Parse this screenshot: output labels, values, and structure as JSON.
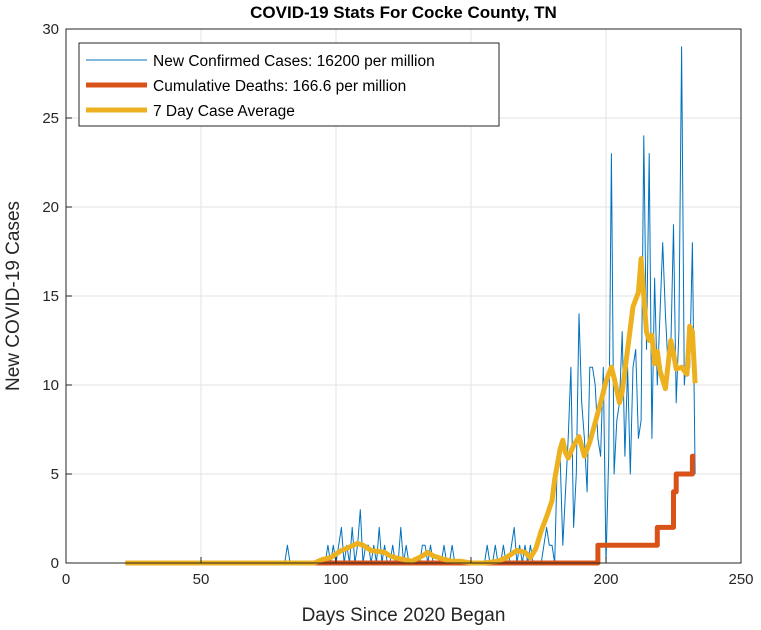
{
  "chart_data": {
    "type": "line",
    "title": "COVID-19 Stats For Cocke County, TN",
    "xlabel": "Days Since 2020 Began",
    "ylabel": "New COVID-19 Cases",
    "xlim": [
      0,
      250
    ],
    "ylim": [
      0,
      30
    ],
    "xticks": [
      0,
      50,
      100,
      150,
      200,
      250
    ],
    "yticks": [
      0,
      5,
      10,
      15,
      20,
      25,
      30
    ],
    "xtick_labels": [
      "0",
      "50",
      "100",
      "150",
      "200",
      "250"
    ],
    "ytick_labels": [
      "0",
      "5",
      "10",
      "15",
      "20",
      "25",
      "30"
    ],
    "grid": true,
    "legend_placement": "top-left",
    "series": [
      {
        "name": "New Confirmed Cases: 16200 per million",
        "color": "#0072BD",
        "x": [
          22,
          30,
          40,
          50,
          60,
          70,
          79,
          80,
          81,
          82,
          83,
          84,
          85,
          90,
          95,
          96,
          97,
          98,
          99,
          100,
          101,
          102,
          103,
          104,
          105,
          106,
          107,
          108,
          109,
          110,
          111,
          112,
          113,
          114,
          115,
          116,
          117,
          118,
          119,
          120,
          121,
          122,
          123,
          124,
          125,
          126,
          127,
          128,
          129,
          130,
          131,
          132,
          133,
          134,
          135,
          136,
          137,
          138,
          139,
          140,
          141,
          142,
          143,
          144,
          145,
          150,
          155,
          156,
          157,
          158,
          159,
          160,
          161,
          162,
          163,
          164,
          165,
          166,
          167,
          168,
          169,
          170,
          171,
          172,
          173,
          174,
          175,
          176,
          177,
          178,
          179,
          180,
          181,
          182,
          183,
          184,
          185,
          186,
          187,
          188,
          189,
          190,
          191,
          192,
          193,
          194,
          195,
          196,
          197,
          198,
          199,
          200,
          201,
          202,
          203,
          204,
          205,
          206,
          207,
          208,
          209,
          210,
          211,
          212,
          213,
          214,
          215,
          216,
          217,
          218,
          219,
          220,
          221,
          222,
          223,
          224,
          225,
          226,
          227,
          228,
          229,
          230,
          231,
          232,
          233
        ],
        "y": [
          0,
          0,
          0,
          0,
          0,
          0,
          0,
          0,
          0,
          1,
          0,
          0,
          0,
          0,
          0,
          0,
          1,
          0,
          1,
          0,
          1,
          2,
          0,
          1,
          0,
          2,
          0,
          1,
          3,
          0,
          1,
          1,
          0,
          1,
          0,
          2,
          0,
          1,
          0,
          0,
          1,
          0,
          0,
          2,
          0,
          1,
          0,
          0,
          0,
          0,
          0,
          1,
          1,
          0,
          1,
          0,
          0,
          0,
          0,
          1,
          0,
          0,
          1,
          0,
          0,
          0,
          0,
          1,
          0,
          0,
          1,
          0,
          0,
          1,
          0,
          0,
          1,
          2,
          0,
          1,
          0,
          1,
          0,
          1,
          0,
          0,
          0,
          0,
          1,
          2,
          1,
          1,
          0,
          6,
          6,
          1,
          4,
          7,
          11,
          2,
          5,
          14,
          9,
          7,
          4,
          11,
          11,
          10,
          7,
          6,
          11,
          0,
          6,
          23,
          5,
          8,
          9,
          13,
          6,
          11,
          5,
          11,
          12,
          7,
          8,
          24,
          12,
          23,
          7,
          16,
          10,
          14,
          18,
          14,
          11,
          12,
          19,
          9,
          13,
          29,
          10,
          12,
          11,
          18,
          5
        ]
      },
      {
        "name": "Cumulative Deaths: 166.6 per million",
        "color": "#D95319",
        "x": [
          22,
          100,
          196,
          197,
          218,
          219,
          223,
          224,
          225,
          226,
          227,
          228,
          229,
          230,
          231,
          232,
          233
        ],
        "y": [
          0,
          0,
          0,
          1,
          1,
          2,
          2,
          2,
          4,
          5,
          5,
          5,
          5,
          5,
          5,
          6,
          6
        ]
      },
      {
        "name": "7 Day Case Average",
        "color": "#EDB120",
        "x": [
          22,
          60,
          88,
          92,
          95,
          98,
          100,
          102,
          105,
          108,
          110,
          113,
          118,
          120,
          122,
          125,
          128,
          132,
          134,
          136,
          140,
          143,
          146,
          150,
          155,
          160,
          163,
          165,
          167,
          170,
          172,
          174,
          176,
          178,
          180,
          181,
          183,
          184,
          185,
          186,
          188,
          190,
          192,
          194,
          196,
          198,
          200,
          202,
          203,
          205,
          206,
          208,
          210,
          212,
          213,
          214,
          215,
          216,
          217,
          218,
          219,
          220,
          222,
          224,
          225,
          226,
          228,
          230,
          231,
          232,
          233
        ],
        "y": [
          0,
          0,
          0,
          0,
          0.2,
          0.3,
          0.5,
          0.7,
          0.9,
          1.1,
          1.0,
          0.7,
          0.6,
          0.4,
          0.3,
          0.2,
          0.1,
          0.4,
          0.6,
          0.4,
          0.2,
          0.1,
          0.1,
          0,
          0,
          0.1,
          0.3,
          0.5,
          0.7,
          0.6,
          0.3,
          0.8,
          1.8,
          2.6,
          3.5,
          4.7,
          6.4,
          6.9,
          6.2,
          5.9,
          6.6,
          7.1,
          6.0,
          6.8,
          7.9,
          9.0,
          10.2,
          11.0,
          10.4,
          9.0,
          9.6,
          12.0,
          14.4,
          15.2,
          17.1,
          15.0,
          13.0,
          12.5,
          12.8,
          11.2,
          11.9,
          10.8,
          9.8,
          12.5,
          11.8,
          10.9,
          11.0,
          10.6,
          13.3,
          13.0,
          10.1
        ]
      }
    ]
  }
}
